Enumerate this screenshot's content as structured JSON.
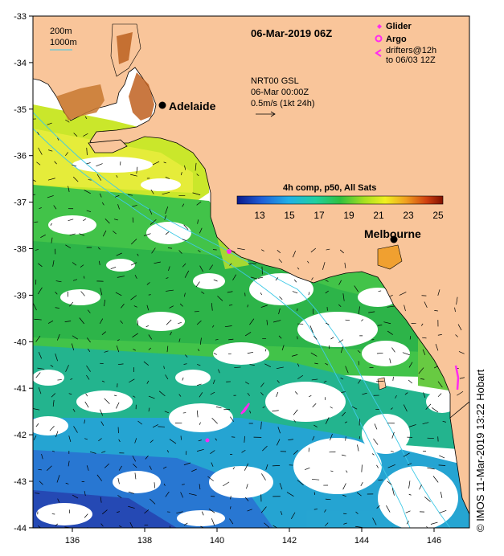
{
  "map": {
    "date_title": "06-Mar-2019 06Z",
    "lon_ticks": [
      "136",
      "138",
      "140",
      "142",
      "144",
      "146"
    ],
    "lat_ticks": [
      "-33",
      "-34",
      "-35",
      "-36",
      "-37",
      "-38",
      "-39",
      "-40",
      "-41",
      "-42",
      "-43",
      "-44"
    ],
    "bathymetry_legend": {
      "line1": "200m",
      "line2": "1000m"
    },
    "current_legend": {
      "line1": "NRT00 GSL",
      "line2": "06-Mar 00:00Z",
      "line3": "0.5m/s (1kt 24h)"
    },
    "platform_legend": {
      "glider": "Glider",
      "argo": "Argo",
      "drifters_line1": "drifters@12h",
      "drifters_line2": "to 06/03 12Z"
    },
    "cities": [
      {
        "name": "Adelaide"
      },
      {
        "name": "Melbourne"
      }
    ],
    "colorbar": {
      "title": "4h comp, p50, All Sats",
      "ticks": [
        "13",
        "15",
        "17",
        "19",
        "21",
        "23",
        "25"
      ]
    },
    "credit": "© IMOS 11-Mar-2019 13:22 Hobart",
    "colors": {
      "land": "#f9c59a",
      "ocean_gap": "#ffffff",
      "markers": "#ff2bf0",
      "bathymetry": "#3ec9e6"
    }
  }
}
